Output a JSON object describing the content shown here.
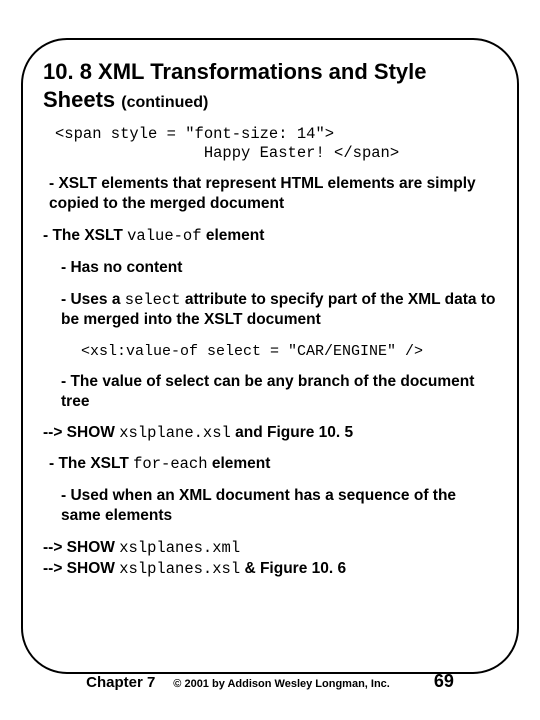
{
  "title": {
    "main": "10. 8 XML Transformations and Style Sheets",
    "continued": "(continued)"
  },
  "code_block_1": "<span style = \"font-size: 14\">\n                Happy Easter! </span>",
  "bullets": {
    "xslt_copy": "- XSLT elements that represent HTML elements are simply copied to the merged document",
    "valueof_intro_pre": "- The XSLT ",
    "valueof_code": "value-of",
    "valueof_intro_post": " element",
    "has_no_content": "- Has no content",
    "uses_select_pre": "- Uses a ",
    "uses_select_code": "select",
    "uses_select_post": " attribute to specify part of the XML data to be merged into the XSLT document",
    "code_block_2": "<xsl:value-of select = \"CAR/ENGINE\" />",
    "branch": "- The value of select can be any branch of the document tree",
    "show1_pre": "--> SHOW ",
    "show1_code": "xslplane.xsl",
    "show1_post": " and Figure 10. 5",
    "foreach_pre": "- The XSLT ",
    "foreach_code": "for-each",
    "foreach_post": " element",
    "foreach_desc": "- Used when an XML document has a sequence of the same elements",
    "show2_pre": "--> SHOW ",
    "show2_code": "xslplanes.xml",
    "show3_pre": "--> SHOW ",
    "show3_code": "xslplanes.xsl",
    "show3_post": " & Figure 10. 6"
  },
  "footer": {
    "chapter": "Chapter 7",
    "copyright": "© 2001 by Addison Wesley Longman, Inc.",
    "pagenum": "69"
  }
}
